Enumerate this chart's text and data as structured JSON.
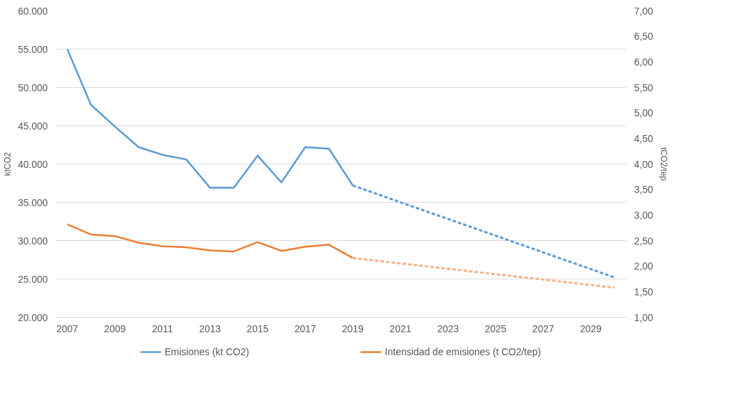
{
  "chart_data": {
    "type": "line",
    "ylabel": "ktCO2",
    "y2label": "tCO2/tep",
    "series": [
      {
        "name": "Emisiones (kt CO2)",
        "color": "#5b9bd5",
        "x": [
          2007,
          2008,
          2009,
          2010,
          2011,
          2012,
          2013,
          2014,
          2015,
          2016,
          2017,
          2018,
          2019
        ],
        "values": [
          55000,
          47700,
          44900,
          42200,
          41200,
          40600,
          36900,
          36900,
          41100,
          37600,
          42200,
          42000,
          37200
        ]
      },
      {
        "name": "Intensidad de emisiones (t CO2/tep)",
        "color": "#ed7d31",
        "axis": "y2",
        "x": [
          2007,
          2008,
          2009,
          2010,
          2011,
          2012,
          2013,
          2014,
          2015,
          2016,
          2017,
          2018,
          2019
        ],
        "values": [
          2.82,
          2.62,
          2.59,
          2.46,
          2.39,
          2.37,
          2.31,
          2.29,
          2.47,
          2.3,
          2.38,
          2.42,
          2.16
        ]
      },
      {
        "color": "#5b9bd5",
        "line_style": "dashed",
        "x": [
          2019,
          2030
        ],
        "values": [
          37200,
          25200
        ]
      },
      {
        "color": "#f4b183",
        "line_style": "dashed",
        "axis": "y2",
        "x": [
          2019,
          2030
        ],
        "values": [
          2.16,
          1.58
        ]
      }
    ],
    "xlim": [
      2006.5,
      2030.5
    ],
    "xticks": [
      2007,
      2009,
      2011,
      2013,
      2015,
      2017,
      2019,
      2021,
      2023,
      2025,
      2027,
      2029
    ],
    "ylim": [
      20000,
      60000
    ],
    "yticks": [
      {
        "value": 20000,
        "label": "20.000"
      },
      {
        "value": 25000,
        "label": "25.000"
      },
      {
        "value": 30000,
        "label": "30.000"
      },
      {
        "value": 35000,
        "label": "35.000"
      },
      {
        "value": 40000,
        "label": "40.000"
      },
      {
        "value": 45000,
        "label": "45.000"
      },
      {
        "value": 50000,
        "label": "50.000"
      },
      {
        "value": 55000,
        "label": "55.000"
      },
      {
        "value": 60000,
        "label": "60.000"
      }
    ],
    "y2lim": [
      1,
      7
    ],
    "y2ticks": [
      {
        "value": 1,
        "label": "1,00"
      },
      {
        "value": 1.5,
        "label": "1,50"
      },
      {
        "value": 2,
        "label": "2,00"
      },
      {
        "value": 2.5,
        "label": "2,50"
      },
      {
        "value": 3,
        "label": "3,00"
      },
      {
        "value": 3.5,
        "label": "3,50"
      },
      {
        "value": 4,
        "label": "4,00"
      },
      {
        "value": 4.5,
        "label": "4,50"
      },
      {
        "value": 5,
        "label": "5,00"
      },
      {
        "value": 5.5,
        "label": "5,50"
      },
      {
        "value": 6,
        "label": "6,00"
      },
      {
        "value": 6.5,
        "label": "6,50"
      },
      {
        "value": 7,
        "label": "7,00"
      }
    ],
    "grid": "y",
    "legend": "bottom",
    "line_style": "solid",
    "marker": "none"
  }
}
